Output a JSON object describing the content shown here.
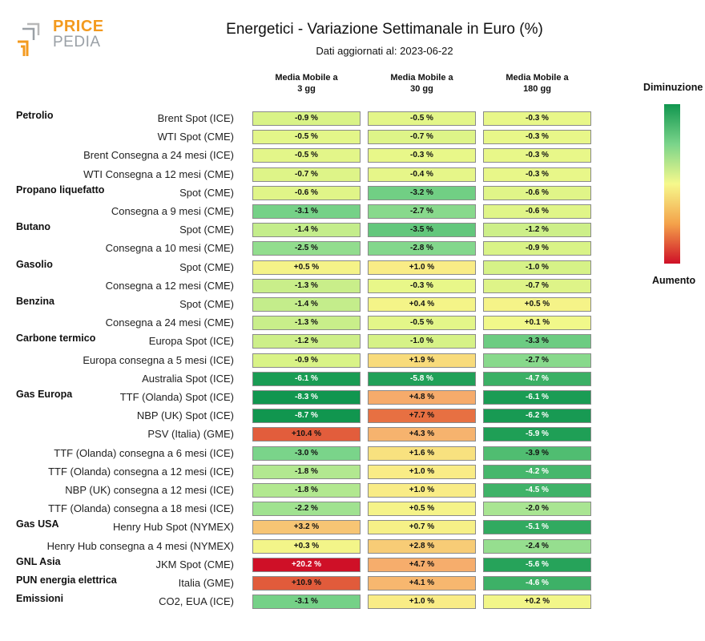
{
  "logo": {
    "word1": "PRICE",
    "word2": "PEDIA"
  },
  "title": "Energetici - Variazione Settimanale in Euro (%)",
  "subtitle": "Dati aggiornati al: 2023-06-22",
  "legend": {
    "top": "Diminuzione",
    "bottom": "Aumento"
  },
  "chart_data": {
    "type": "heatmap",
    "columns": [
      "Media Mobile a\n3 gg",
      "Media Mobile a\n30 gg",
      "Media Mobile a\n180 gg"
    ],
    "column_lines": [
      [
        "Media Mobile a",
        "3 gg"
      ],
      [
        "Media Mobile a",
        "30 gg"
      ],
      [
        "Media Mobile a",
        "180 gg"
      ]
    ],
    "rows": [
      {
        "group": "Petrolio",
        "label": "Brent Spot (ICE)",
        "values": [
          -0.9,
          -0.5,
          -0.3
        ],
        "text": [
          "-0.9 %",
          "-0.5 %",
          "-0.3 %"
        ]
      },
      {
        "group": "",
        "label": "WTI Spot (CME)",
        "values": [
          -0.5,
          -0.7,
          -0.3
        ],
        "text": [
          "-0.5 %",
          "-0.7 %",
          "-0.3 %"
        ]
      },
      {
        "group": "",
        "label": "Brent Consegna a 24 mesi (ICE)",
        "values": [
          -0.5,
          -0.3,
          -0.3
        ],
        "text": [
          "-0.5 %",
          "-0.3 %",
          "-0.3 %"
        ]
      },
      {
        "group": "",
        "label": "WTI Consegna a 12 mesi (CME)",
        "values": [
          -0.7,
          -0.4,
          -0.3
        ],
        "text": [
          "-0.7 %",
          "-0.4 %",
          "-0.3 %"
        ]
      },
      {
        "group": "Propano liquefatto",
        "label": "Spot (CME)",
        "values": [
          -0.6,
          -3.2,
          -0.6
        ],
        "text": [
          "-0.6 %",
          "-3.2 %",
          "-0.6 %"
        ]
      },
      {
        "group": "",
        "label": "Consegna a 9 mesi (CME)",
        "values": [
          -3.1,
          -2.7,
          -0.6
        ],
        "text": [
          "-3.1 %",
          "-2.7 %",
          "-0.6 %"
        ]
      },
      {
        "group": "Butano",
        "label": "Spot (CME)",
        "values": [
          -1.4,
          -3.5,
          -1.2
        ],
        "text": [
          "-1.4 %",
          "-3.5 %",
          "-1.2 %"
        ]
      },
      {
        "group": "",
        "label": "Consegna a 10 mesi (CME)",
        "values": [
          -2.5,
          -2.8,
          -0.9
        ],
        "text": [
          "-2.5 %",
          "-2.8 %",
          "-0.9 %"
        ]
      },
      {
        "group": "Gasolio",
        "label": "Spot (CME)",
        "values": [
          0.5,
          1.0,
          -1.0
        ],
        "text": [
          "+0.5 %",
          "+1.0 %",
          "-1.0 %"
        ]
      },
      {
        "group": "",
        "label": "Consegna a 12 mesi (CME)",
        "values": [
          -1.3,
          -0.3,
          -0.7
        ],
        "text": [
          "-1.3 %",
          "-0.3 %",
          "-0.7 %"
        ]
      },
      {
        "group": "Benzina",
        "label": "Spot (CME)",
        "values": [
          -1.4,
          0.4,
          0.5
        ],
        "text": [
          "-1.4 %",
          "+0.4 %",
          "+0.5 %"
        ]
      },
      {
        "group": "",
        "label": "Consegna a 24 mesi (CME)",
        "values": [
          -1.3,
          -0.5,
          0.1
        ],
        "text": [
          "-1.3 %",
          "-0.5 %",
          "+0.1 %"
        ]
      },
      {
        "group": "Carbone termico",
        "label": "Europa Spot (ICE)",
        "values": [
          -1.2,
          -1.0,
          -3.3
        ],
        "text": [
          "-1.2 %",
          "-1.0 %",
          "-3.3 %"
        ]
      },
      {
        "group": "",
        "label": "Europa consegna a 5 mesi (ICE)",
        "values": [
          -0.9,
          1.9,
          -2.7
        ],
        "text": [
          "-0.9 %",
          "+1.9 %",
          "-2.7 %"
        ]
      },
      {
        "group": "",
        "label": "Australia Spot (ICE)",
        "values": [
          -6.1,
          -5.8,
          -4.7
        ],
        "text": [
          "-6.1 %",
          "-5.8 %",
          "-4.7 %"
        ]
      },
      {
        "group": "Gas Europa",
        "label": "TTF (Olanda) Spot (ICE)",
        "values": [
          -8.3,
          4.8,
          -6.1
        ],
        "text": [
          "-8.3 %",
          "+4.8 %",
          "-6.1 %"
        ]
      },
      {
        "group": "",
        "label": "NBP (UK) Spot (ICE)",
        "values": [
          -8.7,
          7.7,
          -6.2
        ],
        "text": [
          "-8.7 %",
          "+7.7 %",
          "-6.2 %"
        ]
      },
      {
        "group": "",
        "label": "PSV (Italia) (GME)",
        "values": [
          10.4,
          4.3,
          -5.9
        ],
        "text": [
          "+10.4 %",
          "+4.3 %",
          "-5.9 %"
        ]
      },
      {
        "group": "",
        "label": "TTF (Olanda) consegna a 6 mesi (ICE)",
        "values": [
          -3.0,
          1.6,
          -3.9
        ],
        "text": [
          "-3.0 %",
          "+1.6 %",
          "-3.9 %"
        ]
      },
      {
        "group": "",
        "label": "TTF (Olanda) consegna a 12 mesi (ICE)",
        "values": [
          -1.8,
          1.0,
          -4.2
        ],
        "text": [
          "-1.8 %",
          "+1.0 %",
          "-4.2 %"
        ]
      },
      {
        "group": "",
        "label": "NBP (UK) consegna a 12 mesi (ICE)",
        "values": [
          -1.8,
          1.0,
          -4.5
        ],
        "text": [
          "-1.8 %",
          "+1.0 %",
          "-4.5 %"
        ]
      },
      {
        "group": "",
        "label": "TTF (Olanda) consegna a 18 mesi (ICE)",
        "values": [
          -2.2,
          0.5,
          -2.0
        ],
        "text": [
          "-2.2 %",
          "+0.5 %",
          "-2.0 %"
        ]
      },
      {
        "group": "Gas USA",
        "label": "Henry Hub Spot (NYMEX)",
        "values": [
          3.2,
          0.7,
          -5.1
        ],
        "text": [
          "+3.2 %",
          "+0.7 %",
          "-5.1 %"
        ]
      },
      {
        "group": "",
        "label": "Henry Hub consegna a 4 mesi (NYMEX)",
        "values": [
          0.3,
          2.8,
          -2.4
        ],
        "text": [
          "+0.3 %",
          "+2.8 %",
          "-2.4 %"
        ]
      },
      {
        "group": "GNL Asia",
        "label": "JKM Spot (CME)",
        "values": [
          20.2,
          4.7,
          -5.6
        ],
        "text": [
          "+20.2 %",
          "+4.7 %",
          "-5.6 %"
        ]
      },
      {
        "group": "PUN energia elettrica",
        "label": "Italia (GME)",
        "values": [
          10.9,
          4.1,
          -4.6
        ],
        "text": [
          "+10.9 %",
          "+4.1 %",
          "-4.6 %"
        ]
      },
      {
        "group": "Emissioni",
        "label": "CO2, EUA (ICE)",
        "values": [
          -3.1,
          1.0,
          0.2
        ],
        "text": [
          "-3.1 %",
          "+1.0 %",
          "+0.2 %"
        ]
      }
    ],
    "color_scale": {
      "low": "#11964f",
      "mid": "#f6f98c",
      "high": "#cf1027"
    }
  }
}
